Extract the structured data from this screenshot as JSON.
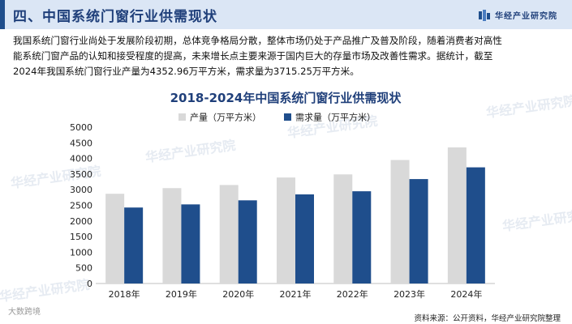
{
  "header": {
    "section_title": "四、中国系统门窗行业供需现状",
    "brand_name": "华经产业研究院"
  },
  "paragraph": {
    "lines": [
      "我国系统门窗行业尚处于发展阶段初期，总体竞争格局分散，整体市场仍处于产品推广及普及阶段，随着消费者对高性",
      "能系统门窗产品的认知和接受程度的提高，未来增长点主要来源于国内巨大的存量市场及改善性需求。据统计，截至",
      "2024年我国系统门窗行业产量为4352.96万平方米，需求量为3715.25万平方米。"
    ]
  },
  "watermark": "华经产业研究院",
  "footer": {
    "left_mark": "大数跨境",
    "source": "资料来源：公开资料，华经产业研究院整理"
  },
  "colors": {
    "production": "#d9d9d9",
    "demand": "#1f4e8c",
    "title": "#1f3f7a",
    "header_bg": "#dbe6f5"
  },
  "chart_data": {
    "type": "bar",
    "title": "2018-2024年中国系统门窗行业供需现状",
    "categories": [
      "2018年",
      "2019年",
      "2020年",
      "2021年",
      "2022年",
      "2023年",
      "2024年"
    ],
    "series": [
      {
        "name": "产量（万平方米）",
        "values": [
          2870,
          3050,
          3150,
          3390,
          3490,
          3950,
          4352.96
        ],
        "color": "#d9d9d9"
      },
      {
        "name": "需求量（万平方米）",
        "values": [
          2430,
          2530,
          2660,
          2850,
          2950,
          3340,
          3715.25
        ],
        "color": "#1f4e8c"
      }
    ],
    "yticks": [
      0,
      500,
      1000,
      1500,
      2000,
      2500,
      3000,
      3500,
      4000,
      4500,
      5000
    ],
    "ylim": [
      0,
      5000
    ],
    "grid": false,
    "legend_position": "top"
  }
}
